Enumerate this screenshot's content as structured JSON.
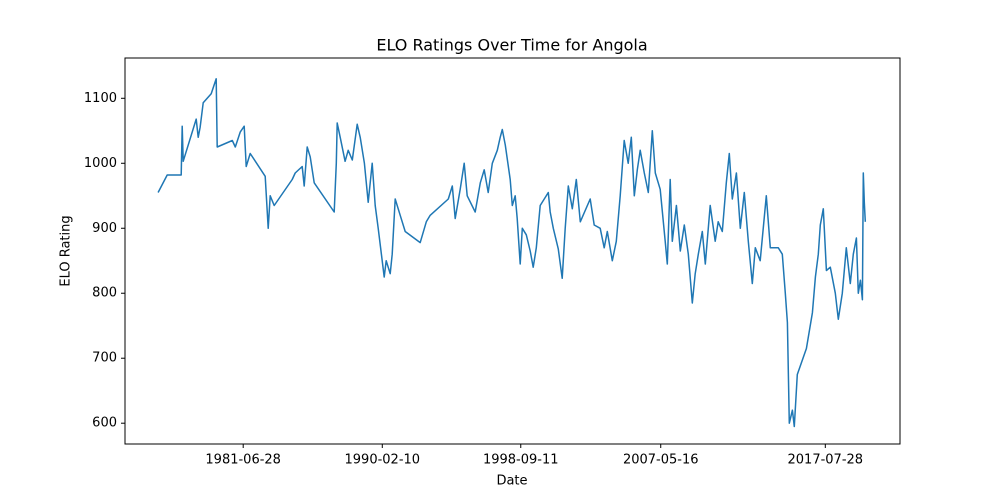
{
  "chart_data": {
    "type": "line",
    "title": "ELO Ratings Over Time for Angola",
    "xlabel": "Date",
    "ylabel": "ELO Rating",
    "x": [
      "1976-03-20",
      "1976-10-12",
      "1977-08-25",
      "1977-09-17",
      "1977-10-09",
      "1978-07-31",
      "1978-09-14",
      "1978-10-27",
      "1979-01-04",
      "1979-07-04",
      "1979-10-26",
      "1979-11-17",
      "1980-10-24",
      "1981-01-01",
      "1981-04-20",
      "1981-07-20",
      "1981-09-05",
      "1981-12-03",
      "1982-11-07",
      "1983-01-15",
      "1983-03-01",
      "1983-05-30",
      "1984-07-12",
      "1984-09-18",
      "1985-02-23",
      "1985-04-08",
      "1985-06-17",
      "1985-08-23",
      "1985-11-21",
      "1987-02-17",
      "1987-04-05",
      "1987-04-27",
      "1987-07-02",
      "1987-10-23",
      "1988-01-01",
      "1988-04-01",
      "1988-07-23",
      "1988-09-28",
      "1989-01-01",
      "1989-03-28",
      "1989-05-12",
      "1989-06-27",
      "1989-09-02",
      "1989-11-10",
      "1990-03-26",
      "1990-05-10",
      "1990-08-08",
      "1990-09-23",
      "1990-11-29",
      "1991-03-22",
      "1991-07-13",
      "1992-06-18",
      "1992-11-03",
      "1993-01-30",
      "1994-03-15",
      "1994-06-13",
      "1994-08-18",
      "1994-12-10",
      "1995-03-10",
      "1995-05-18",
      "1995-11-14",
      "1996-03-08",
      "1996-06-05",
      "1996-09-04",
      "1996-12-06",
      "1997-03-28",
      "1997-06-03",
      "1997-07-19",
      "1997-09-25",
      "1998-01-15",
      "1998-03-03",
      "1998-05-08",
      "1998-06-23",
      "1998-08-29",
      "1998-10-15",
      "1999-01-14",
      "1999-04-12",
      "1999-06-19",
      "1999-08-28",
      "1999-11-24",
      "2000-05-26",
      "2000-07-09",
      "2000-09-16",
      "2001-01-08",
      "2001-04-07",
      "2001-06-14",
      "2001-08-22",
      "2001-11-21",
      "2002-02-20",
      "2002-05-20",
      "2003-01-01",
      "2003-04-01",
      "2003-08-15",
      "2003-11-14",
      "2004-01-22",
      "2004-05-15",
      "2004-08-14",
      "2004-11-10",
      "2005-02-09",
      "2005-05-10",
      "2005-07-19",
      "2005-09-24",
      "2005-12-02",
      "2006-02-06",
      "2006-05-08",
      "2006-08-07",
      "2006-11-06",
      "2007-01-12",
      "2007-05-04",
      "2007-08-26",
      "2007-10-12",
      "2007-12-17",
      "2008-02-03",
      "2008-05-04",
      "2008-08-01",
      "2008-10-30",
      "2009-01-30",
      "2009-04-30",
      "2009-07-05",
      "2009-09-12",
      "2009-12-12",
      "2010-02-18",
      "2010-06-10",
      "2010-10-01",
      "2010-12-08",
      "2011-03-10",
      "2011-06-09",
      "2011-08-15",
      "2011-10-23",
      "2012-01-22",
      "2012-04-20",
      "2012-07-19",
      "2012-10-19",
      "2013-01-18",
      "2013-03-26",
      "2013-07-16",
      "2013-12-01",
      "2014-03-01",
      "2014-08-29",
      "2014-11-28",
      "2015-02-03",
      "2015-03-22",
      "2015-05-05",
      "2015-07-13",
      "2015-08-26",
      "2015-11-03",
      "2016-05-26",
      "2016-10-09",
      "2016-12-15",
      "2017-02-20",
      "2017-04-05",
      "2017-06-13",
      "2017-08-21",
      "2017-11-18",
      "2018-03-11",
      "2018-05-18",
      "2018-08-17",
      "2018-11-16",
      "2019-02-14",
      "2019-04-22",
      "2019-07-01",
      "2019-08-15",
      "2019-10-01",
      "2019-11-14",
      "2019-12-06",
      "2019-12-28",
      "2020-01-19"
    ],
    "series": [
      {
        "name": "Angola",
        "color": "#1f77b4",
        "values": [
          955,
          982,
          982,
          1057,
          1003,
          1068,
          1040,
          1055,
          1093,
          1107,
          1130,
          1025,
          1035,
          1025,
          1048,
          1057,
          995,
          1015,
          980,
          900,
          950,
          935,
          975,
          985,
          995,
          965,
          1025,
          1010,
          970,
          925,
          1000,
          1062,
          1040,
          1003,
          1020,
          1005,
          1060,
          1040,
          1000,
          940,
          970,
          1000,
          935,
          900,
          825,
          850,
          830,
          860,
          945,
          920,
          895,
          878,
          910,
          920,
          945,
          965,
          915,
          960,
          1000,
          950,
          925,
          970,
          990,
          955,
          1000,
          1020,
          1040,
          1052,
          1028,
          975,
          935,
          950,
          915,
          845,
          900,
          890,
          865,
          840,
          870,
          935,
          955,
          925,
          900,
          868,
          823,
          900,
          965,
          930,
          975,
          910,
          945,
          905,
          900,
          870,
          895,
          850,
          880,
          950,
          1035,
          1000,
          1040,
          950,
          990,
          1020,
          985,
          955,
          1050,
          985,
          960,
          880,
          845,
          975,
          880,
          935,
          865,
          905,
          860,
          785,
          830,
          860,
          895,
          845,
          935,
          880,
          910,
          895,
          970,
          1015,
          945,
          985,
          900,
          955,
          880,
          815,
          870,
          850,
          950,
          870,
          870,
          860,
          800,
          755,
          600,
          620,
          595,
          675,
          715,
          770,
          825,
          860,
          905,
          930,
          835,
          840,
          800,
          760,
          800,
          870,
          815,
          860,
          885,
          800,
          820,
          790,
          985,
          940,
          910
        ]
      }
    ],
    "xlim": [
      "1974-03-01",
      "2022-03-15"
    ],
    "ylim": [
      568,
      1162
    ],
    "xticks": [
      "1981-06-28",
      "1990-02-10",
      "1998-09-11",
      "2007-05-16",
      "2017-07-28"
    ],
    "yticks": [
      600,
      700,
      800,
      900,
      1000,
      1100
    ],
    "grid": false
  }
}
